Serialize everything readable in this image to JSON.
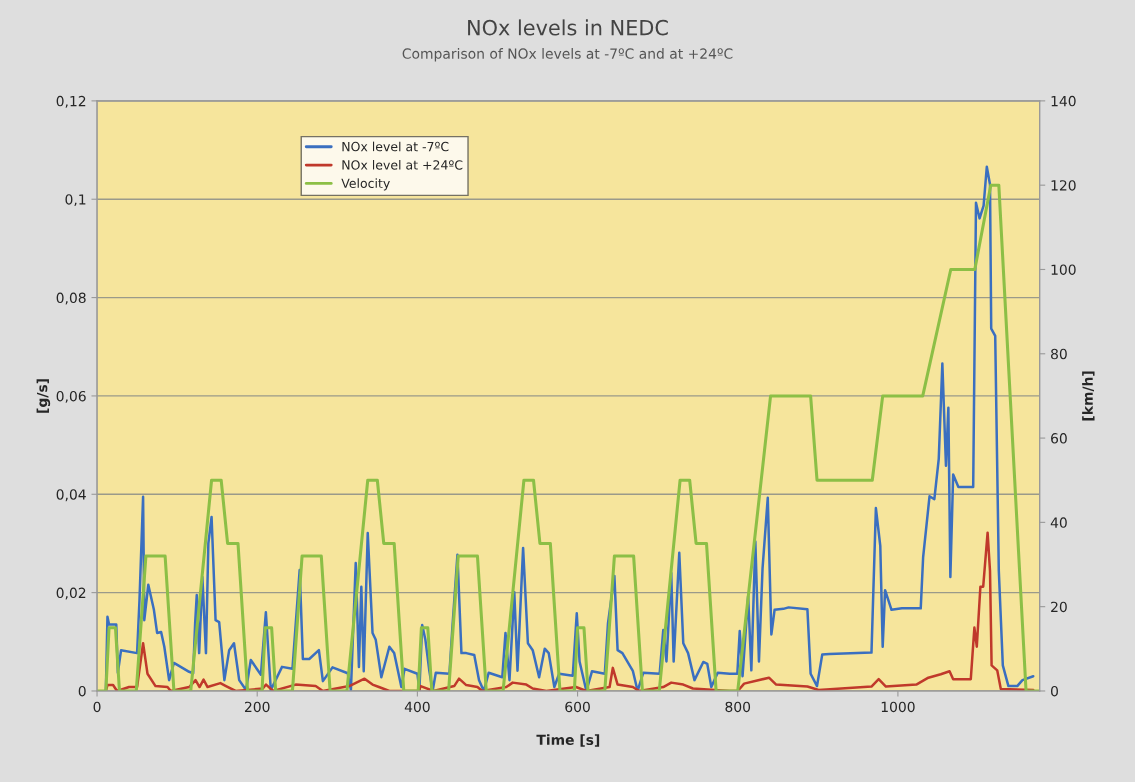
{
  "chart_data": {
    "type": "line",
    "title": "NOx levels in NEDC",
    "subtitle": "Comparison of NOx levels at -7ºC and at +24ºC",
    "xlabel": "Time [s]",
    "ylabel": "[g/s]",
    "y2label": "[km/h]",
    "xlim": [
      0,
      1177
    ],
    "xticks": [
      0,
      200,
      400,
      600,
      800,
      1000
    ],
    "ylim": [
      0,
      0.12
    ],
    "yticks": [
      0,
      {
        "value": 0.02,
        "label": "0,02"
      },
      {
        "value": 0.04,
        "label": "0,04"
      },
      {
        "value": 0.06,
        "label": "0,06"
      },
      {
        "value": 0.08,
        "label": "0,08"
      },
      {
        "value": 0.1,
        "label": "0,1"
      },
      {
        "value": 0.12,
        "label": "0,12"
      }
    ],
    "y2lim": [
      0,
      140
    ],
    "y2ticks": [
      0,
      20,
      40,
      60,
      80,
      100,
      120,
      140
    ],
    "grid": "y",
    "legend": "top left",
    "series": [
      {
        "name": "NOx level at -7ºC",
        "color": "#3a6fc0",
        "x": [
          11,
          13,
          15,
          24,
          26,
          30,
          50,
          53,
          57.5,
          59,
          64,
          71,
          75,
          80,
          84,
          90,
          96,
          115,
          120,
          122.5,
          124.5,
          127.5,
          131.5,
          136,
          139,
          143,
          148,
          152.5,
          159,
          165,
          171,
          177.5,
          186,
          192,
          204.6,
          210.8,
          217,
          231,
          244,
          253,
          257,
          265,
          277,
          282,
          294,
          313,
          317,
          323,
          327,
          330,
          333,
          338,
          344,
          348,
          355,
          365,
          371,
          380,
          384,
          400,
          402.5,
          406,
          410,
          415,
          419,
          423,
          440,
          443.5,
          450,
          455,
          461,
          471,
          477,
          483,
          489,
          506,
          510,
          515,
          521,
          525,
          532,
          538,
          544,
          552,
          559,
          564,
          571,
          577,
          594,
          599,
          602.5,
          611,
          618,
          634,
          638,
          646,
          650,
          656,
          669,
          675,
          682,
          702.5,
          707,
          711,
          717,
          720,
          727,
          732,
          738,
          746,
          757,
          762,
          767,
          775,
          790,
          799.5,
          802.5,
          806,
          813,
          817,
          822,
          826.5,
          831,
          837.5,
          842,
          846,
          857,
          863.5,
          887,
          891,
          899,
          905.5,
          914.5,
          967,
          972.5,
          978,
          981,
          984,
          992,
          1005,
          1028.5,
          1031.5,
          1039.5,
          1045.5,
          1051,
          1055.5,
          1060,
          1063,
          1065.5,
          1069,
          1075.5,
          1094,
          1097.5,
          1102,
          1107,
          1111,
          1115,
          1116.5,
          1121.5,
          1126,
          1131,
          1138,
          1149,
          1155.5,
          1169
        ],
        "values": [
          0,
          0.0151,
          0.0135,
          0.0135,
          0.0037,
          0.0083,
          0.0077,
          0.0185,
          0.0395,
          0.0144,
          0.0216,
          0.0165,
          0.0118,
          0.012,
          0.009,
          0.0022,
          0.0057,
          0.0039,
          0.0036,
          0.0138,
          0.0195,
          0.0077,
          0.0232,
          0.0077,
          0.03,
          0.0354,
          0.0144,
          0.014,
          0.0022,
          0.0083,
          0.0097,
          0.0022,
          0.0002,
          0.0063,
          0.0033,
          0.016,
          0.0002,
          0.0049,
          0.0045,
          0.0246,
          0.0065,
          0.0065,
          0.0083,
          0.002,
          0.0048,
          0.0036,
          0.0002,
          0.026,
          0.0049,
          0.0212,
          0.004,
          0.0321,
          0.0118,
          0.0104,
          0.0028,
          0.009,
          0.0077,
          0.0008,
          0.0045,
          0.0035,
          0.0002,
          0.0134,
          0.0104,
          0.004,
          0,
          0.0037,
          0.0035,
          0.0124,
          0.0277,
          0.0077,
          0.0077,
          0.0073,
          0.0022,
          0,
          0.0037,
          0.0028,
          0.0118,
          0.0022,
          0.0201,
          0.0041,
          0.0291,
          0.0097,
          0.0083,
          0.0028,
          0.0086,
          0.0077,
          0.0008,
          0.0035,
          0.0031,
          0.0158,
          0.006,
          0,
          0.004,
          0.0035,
          0.0138,
          0.0234,
          0.0083,
          0.0077,
          0.0041,
          0,
          0.0037,
          0.0035,
          0.0124,
          0.006,
          0.024,
          0.006,
          0.0281,
          0.0097,
          0.0077,
          0.0022,
          0.0059,
          0.0055,
          0.0008,
          0.0037,
          0.0035,
          0.0035,
          0.0122,
          0.003,
          0.0193,
          0.0042,
          0.0304,
          0.006,
          0.025,
          0.0393,
          0.0115,
          0.0165,
          0.0167,
          0.017,
          0.0166,
          0.0035,
          0.001,
          0.0074,
          0.0075,
          0.0078,
          0.0372,
          0.0295,
          0.009,
          0.0205,
          0.0165,
          0.0168,
          0.0168,
          0.0272,
          0.0396,
          0.039,
          0.0472,
          0.0666,
          0.0458,
          0.0576,
          0.0232,
          0.044,
          0.0415,
          0.0415,
          0.0993,
          0.0961,
          0.0987,
          0.1066,
          0.103,
          0.0737,
          0.0722,
          0.0244,
          0.0052,
          0.001,
          0.001,
          0.0022,
          0.003
        ]
      },
      {
        "name": "NOx level at +24ºC",
        "color": "#c0392b",
        "x": [
          11,
          13,
          20,
          25,
          40,
          50,
          57.5,
          63,
          73,
          88,
          92,
          115,
          123,
          128,
          133,
          138,
          154,
          161,
          173,
          207,
          211,
          220,
          248,
          273,
          282,
          315,
          334,
          344,
          352,
          365,
          402,
          404,
          420,
          446,
          452,
          461,
          475,
          481,
          511,
          519,
          536,
          544,
          561,
          598,
          611,
          640,
          644,
          650,
          669,
          677,
          707,
          717,
          732,
          744,
          790,
          800,
          808,
          839,
          848,
          887,
          901,
          967,
          976,
          985,
          1023,
          1038,
          1053.5,
          1064.5,
          1069,
          1091,
          1095.5,
          1098.5,
          1103,
          1106.5,
          1112,
          1115,
          1117,
          1124,
          1128.5,
          1169
        ],
        "values": [
          0,
          0.0012,
          0.0012,
          0,
          0.0008,
          0.0008,
          0.0097,
          0.0035,
          0.001,
          0.0008,
          0,
          0.0008,
          0.0022,
          0.0008,
          0.0023,
          0.0008,
          0.0016,
          0.001,
          0,
          0.0005,
          0.0013,
          0,
          0.0013,
          0.001,
          0,
          0.001,
          0.0025,
          0.0013,
          0.0008,
          0,
          0,
          0.001,
          0,
          0.001,
          0.0025,
          0.0012,
          0.0008,
          0,
          0.0008,
          0.0017,
          0.0013,
          0.0005,
          0,
          0.0008,
          0,
          0.0008,
          0.0047,
          0.0013,
          0.0008,
          0,
          0.0008,
          0.0017,
          0.0013,
          0.0005,
          0,
          0,
          0.0015,
          0.0027,
          0.0013,
          0.0009,
          0.0002,
          0.0009,
          0.0024,
          0.0009,
          0.0013,
          0.0027,
          0.0034,
          0.004,
          0.0024,
          0.0024,
          0.0129,
          0.009,
          0.0212,
          0.0212,
          0.0322,
          0.0244,
          0.0052,
          0.0042,
          0.0004,
          0.0002
        ]
      },
      {
        "name": "Velocity",
        "color": "#8cbf46",
        "axis": "y2",
        "x": [
          0,
          11,
          15,
          23,
          28,
          49,
          61,
          85,
          96,
          117,
          143,
          155,
          163,
          176,
          188,
          195,
          206,
          210,
          218,
          223,
          244,
          256,
          280,
          291,
          312,
          338,
          350,
          358,
          371,
          383,
          390,
          401,
          405,
          413,
          418,
          439,
          451,
          475,
          486,
          507,
          533,
          545,
          553,
          566,
          578,
          585,
          596,
          600,
          608,
          613,
          634,
          646,
          670,
          681,
          702,
          728,
          740,
          748,
          761,
          773,
          780,
          800,
          841,
          891,
          899,
          968,
          981,
          1031,
          1066,
          1096,
          1116,
          1126,
          1160,
          1177
        ],
        "values": [
          0,
          0,
          15,
          15,
          0,
          0,
          32,
          32,
          0,
          0,
          50,
          50,
          35,
          35,
          0,
          0,
          0,
          15,
          15,
          0,
          0,
          32,
          32,
          0,
          0,
          50,
          50,
          35,
          35,
          0,
          0,
          0,
          15,
          15,
          0,
          0,
          32,
          32,
          0,
          0,
          50,
          50,
          35,
          35,
          0,
          0,
          0,
          15,
          15,
          0,
          0,
          32,
          32,
          0,
          0,
          50,
          50,
          35,
          35,
          0,
          0,
          0,
          70,
          70,
          50,
          50,
          70,
          70,
          100,
          100,
          120,
          120,
          0,
          0
        ]
      }
    ]
  }
}
